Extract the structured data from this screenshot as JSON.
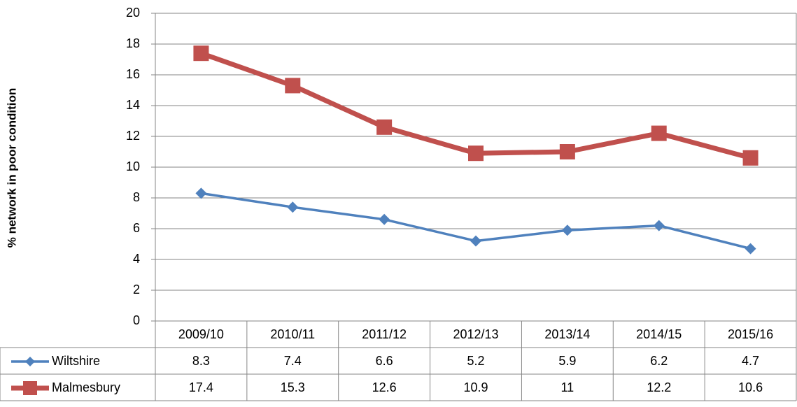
{
  "chart_data": {
    "type": "line",
    "y_label": "% network in poor condition",
    "categories": [
      "2009/10",
      "2010/11",
      "2011/12",
      "2012/13",
      "2013/14",
      "2014/15",
      "2015/16"
    ],
    "series": [
      {
        "name": "Wiltshire",
        "color": "#4f81bd",
        "marker": "diamond",
        "values": [
          8.3,
          7.4,
          6.6,
          5.2,
          5.9,
          6.2,
          4.7
        ]
      },
      {
        "name": "Malmesbury",
        "color": "#c0504d",
        "marker": "square",
        "values": [
          17.4,
          15.3,
          12.6,
          10.9,
          11,
          12.2,
          10.6
        ]
      }
    ],
    "ylim": [
      0,
      20
    ],
    "yticks": [
      0,
      2,
      4,
      6,
      8,
      10,
      12,
      14,
      16,
      18,
      20
    ],
    "grid": true,
    "data_table": true
  }
}
